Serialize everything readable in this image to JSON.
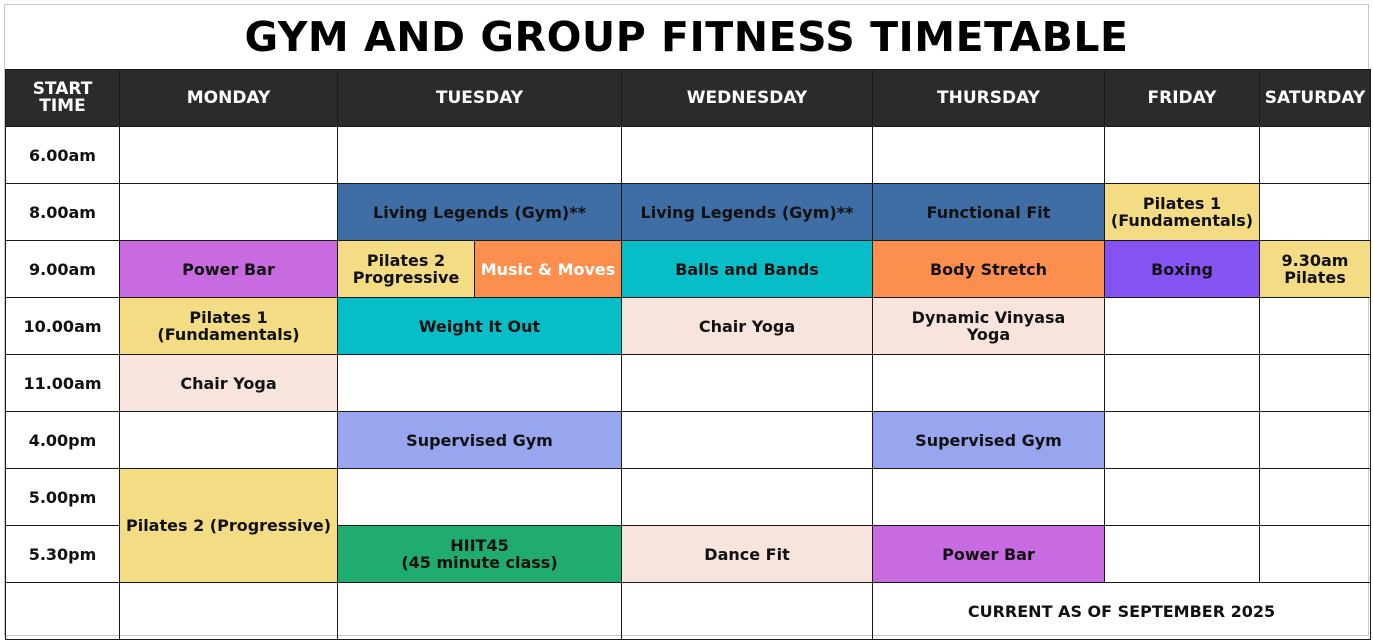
{
  "title": "GYM AND GROUP FITNESS TIMETABLE",
  "headers": [
    "START TIME",
    "MONDAY",
    "TUESDAY",
    "WEDNESDAY",
    "THURSDAY",
    "FRIDAY",
    "SATURDAY"
  ],
  "times": [
    "6.00am",
    "8.00am",
    "9.00am",
    "10.00am",
    "11.00am",
    "4.00pm",
    "5.00pm",
    "5.30pm"
  ],
  "classes": {
    "living_legends_tue": "Living Legends (Gym)**",
    "living_legends_wed": "Living Legends (Gym)**",
    "functional_fit_thu": "Functional Fit",
    "pilates1_fri_l1": "Pilates 1",
    "pilates1_fri_l2": "(Fundamentals)",
    "power_bar_mon": "Power Bar",
    "pilates2_tue_l1": "Pilates 2",
    "pilates2_tue_l2": "Progressive",
    "music_moves_tue": "Music & Moves",
    "balls_bands_wed": "Balls and Bands",
    "body_stretch_thu": "Body Stretch",
    "boxing_fri": "Boxing",
    "pilates_sat_l1": "9.30am",
    "pilates_sat_l2": "Pilates",
    "pilates1_mon_l1": "Pilates 1",
    "pilates1_mon_l2": "(Fundamentals)",
    "weight_it_out_tue": "Weight It Out",
    "chair_yoga_wed": "Chair Yoga",
    "vinyasa_thu_l1": "Dynamic Vinyasa",
    "vinyasa_thu_l2": "Yoga",
    "chair_yoga_mon": "Chair Yoga",
    "supervised_gym_tue": "Supervised Gym",
    "supervised_gym_thu": "Supervised Gym",
    "pilates2_mon": "Pilates 2 (Progressive)",
    "hiit_tue_l1": "HIIT45",
    "hiit_tue_l2": "(45 minute class)",
    "dance_fit_wed": "Dance Fit",
    "power_bar_thu": "Power Bar"
  },
  "footer": "CURRENT AS OF SEPTEMBER 2025",
  "colors": {
    "header_bg": "#2b2b2b",
    "blue": "#3f6ea5",
    "purple": "#c86ae0",
    "violet": "#8553f2",
    "yellow": "#f4dc85",
    "orange": "#fc8f4e",
    "teal": "#07bdc7",
    "peach": "#f7e4dd",
    "periwinkle": "#97a6ef",
    "green": "#20ab6f"
  }
}
